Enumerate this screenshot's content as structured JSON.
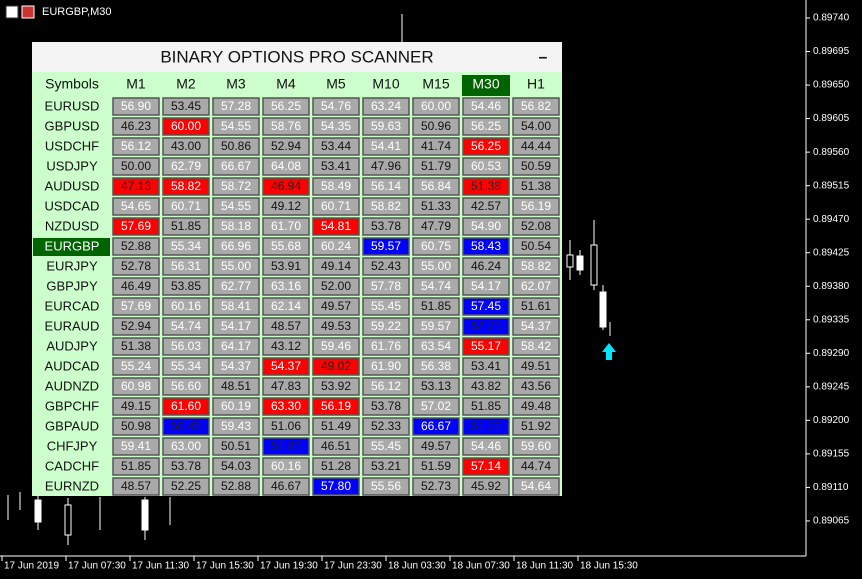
{
  "window": {
    "title": "EURGBP,M30"
  },
  "price_axis": [
    "0.89740",
    "0.89695",
    "0.89650",
    "0.89605",
    "0.89560",
    "0.89515",
    "0.89470",
    "0.89425",
    "0.89380",
    "0.89335",
    "0.89290",
    "0.89245",
    "0.89200",
    "0.89155",
    "0.89110",
    "0.89065"
  ],
  "time_axis": [
    "17 Jun 2019",
    "17 Jun 07:30",
    "17 Jun 11:30",
    "17 Jun 15:30",
    "17 Jun 19:30",
    "17 Jun 23:30",
    "18 Jun 03:30",
    "18 Jun 07:30",
    "18 Jun 11:30",
    "18 Jun 15:30"
  ],
  "scanner": {
    "title": "BINARY OPTIONS PRO SCANNER",
    "minimize": "–",
    "symbols_header": "Symbols",
    "timeframes": [
      "M1",
      "M2",
      "M3",
      "M4",
      "M5",
      "M10",
      "M15",
      "M30",
      "H1"
    ],
    "active_symbol": "EURGBP",
    "active_timeframe": "M30",
    "cell_colors": {
      "D": [
        "#a9a9a9",
        "#111111"
      ],
      "L": [
        "#a9a9a9",
        "#ffffff"
      ],
      "R": [
        "#ff0000",
        "#ffffff"
      ],
      "r": [
        "#ff0000",
        "#222222"
      ],
      "B": [
        "#0000ff",
        "#ffffff"
      ],
      "b": [
        "#0000ff",
        "#222222"
      ]
    },
    "rows": [
      {
        "symbol": "EURUSD",
        "values": [
          "56.90",
          "53.45",
          "57.28",
          "56.25",
          "54.76",
          "63.24",
          "60.00",
          "54.46",
          "56.82"
        ],
        "colors": [
          "L",
          "D",
          "L",
          "L",
          "L",
          "L",
          "L",
          "L",
          "L"
        ]
      },
      {
        "symbol": "GBPUSD",
        "values": [
          "46.23",
          "60.00",
          "54.55",
          "58.76",
          "54.35",
          "59.63",
          "50.96",
          "56.25",
          "54.00"
        ],
        "colors": [
          "D",
          "R",
          "L",
          "L",
          "L",
          "L",
          "D",
          "L",
          "D"
        ]
      },
      {
        "symbol": "USDCHF",
        "values": [
          "56.12",
          "43.00",
          "50.86",
          "52.94",
          "53.44",
          "54.41",
          "41.74",
          "56.25",
          "44.44"
        ],
        "colors": [
          "L",
          "D",
          "D",
          "D",
          "D",
          "L",
          "D",
          "R",
          "D"
        ]
      },
      {
        "symbol": "USDJPY",
        "values": [
          "50.00",
          "62.79",
          "66.67",
          "64.08",
          "53.41",
          "47.96",
          "51.79",
          "60.53",
          "50.59"
        ],
        "colors": [
          "D",
          "L",
          "L",
          "L",
          "D",
          "D",
          "D",
          "L",
          "D"
        ]
      },
      {
        "symbol": "AUDUSD",
        "values": [
          "47.13",
          "58.82",
          "58.72",
          "46.94",
          "58.49",
          "56.14",
          "56.84",
          "51.38",
          "51.38"
        ],
        "colors": [
          "r",
          "R",
          "L",
          "r",
          "L",
          "L",
          "L",
          "r",
          "D"
        ]
      },
      {
        "symbol": "USDCAD",
        "values": [
          "54.65",
          "60.71",
          "54.55",
          "49.12",
          "60.71",
          "58.82",
          "51.33",
          "42.57",
          "56.19"
        ],
        "colors": [
          "L",
          "L",
          "L",
          "D",
          "L",
          "L",
          "D",
          "D",
          "L"
        ]
      },
      {
        "symbol": "NZDUSD",
        "values": [
          "57.69",
          "51.85",
          "58.18",
          "61.70",
          "54.81",
          "53.78",
          "47.79",
          "54.90",
          "52.08"
        ],
        "colors": [
          "R",
          "D",
          "L",
          "L",
          "R",
          "D",
          "D",
          "L",
          "D"
        ]
      },
      {
        "symbol": "EURGBP",
        "values": [
          "52.88",
          "55.34",
          "66.96",
          "55.68",
          "60.24",
          "59.57",
          "60.75",
          "58.43",
          "50.54"
        ],
        "colors": [
          "D",
          "L",
          "L",
          "L",
          "L",
          "B",
          "L",
          "B",
          "D"
        ]
      },
      {
        "symbol": "EURJPY",
        "values": [
          "52.78",
          "56.31",
          "55.00",
          "53.91",
          "49.14",
          "52.43",
          "55.00",
          "46.24",
          "58.82"
        ],
        "colors": [
          "D",
          "L",
          "L",
          "D",
          "D",
          "D",
          "L",
          "D",
          "L"
        ]
      },
      {
        "symbol": "GBPJPY",
        "values": [
          "46.49",
          "53.85",
          "62.77",
          "63.16",
          "52.00",
          "57.78",
          "54.74",
          "54.17",
          "62.07"
        ],
        "colors": [
          "D",
          "D",
          "L",
          "L",
          "D",
          "L",
          "L",
          "L",
          "L"
        ]
      },
      {
        "symbol": "EURCAD",
        "values": [
          "57.69",
          "60.16",
          "58.41",
          "62.14",
          "49.57",
          "55.45",
          "51.85",
          "57.45",
          "51.61"
        ],
        "colors": [
          "L",
          "L",
          "L",
          "L",
          "D",
          "L",
          "D",
          "B",
          "D"
        ]
      },
      {
        "symbol": "EURAUD",
        "values": [
          "52.94",
          "54.74",
          "54.17",
          "48.57",
          "49.53",
          "59.22",
          "59.57",
          "52.75",
          "54.37"
        ],
        "colors": [
          "D",
          "L",
          "L",
          "D",
          "D",
          "L",
          "L",
          "b",
          "L"
        ]
      },
      {
        "symbol": "AUDJPY",
        "values": [
          "51.38",
          "56.03",
          "64.17",
          "43.12",
          "59.46",
          "61.76",
          "63.54",
          "55.17",
          "58.42"
        ],
        "colors": [
          "D",
          "L",
          "L",
          "D",
          "L",
          "L",
          "L",
          "R",
          "L"
        ]
      },
      {
        "symbol": "AUDCAD",
        "values": [
          "55.24",
          "55.34",
          "54.37",
          "54.37",
          "49.02",
          "61.90",
          "56.38",
          "53.41",
          "49.51"
        ],
        "colors": [
          "L",
          "L",
          "L",
          "R",
          "r",
          "L",
          "L",
          "D",
          "D"
        ]
      },
      {
        "symbol": "AUDNZD",
        "values": [
          "60.98",
          "56.60",
          "48.51",
          "47.83",
          "53.92",
          "56.12",
          "53.13",
          "43.82",
          "43.56"
        ],
        "colors": [
          "L",
          "L",
          "D",
          "D",
          "D",
          "L",
          "D",
          "D",
          "D"
        ]
      },
      {
        "symbol": "GBPCHF",
        "values": [
          "49.15",
          "61.60",
          "60.19",
          "63.30",
          "56.19",
          "53.78",
          "57.02",
          "51.85",
          "49.48"
        ],
        "colors": [
          "D",
          "R",
          "L",
          "R",
          "R",
          "D",
          "L",
          "D",
          "D"
        ]
      },
      {
        "symbol": "GBPAUD",
        "values": [
          "50.98",
          "50.46",
          "59.43",
          "51.06",
          "51.49",
          "52.33",
          "66.67",
          "51.72",
          "51.92"
        ],
        "colors": [
          "D",
          "b",
          "L",
          "D",
          "D",
          "D",
          "B",
          "b",
          "D"
        ]
      },
      {
        "symbol": "CHFJPY",
        "values": [
          "59.41",
          "63.00",
          "50.51",
          "51.83",
          "46.51",
          "55.45",
          "49.57",
          "54.46",
          "59.60"
        ],
        "colors": [
          "L",
          "L",
          "D",
          "b",
          "D",
          "L",
          "D",
          "L",
          "L"
        ]
      },
      {
        "symbol": "CADCHF",
        "values": [
          "51.85",
          "53.78",
          "54.03",
          "60.16",
          "51.28",
          "53.21",
          "51.59",
          "57.14",
          "44.74"
        ],
        "colors": [
          "D",
          "D",
          "D",
          "L",
          "D",
          "D",
          "D",
          "R",
          "D"
        ]
      },
      {
        "symbol": "EURNZD",
        "values": [
          "48.57",
          "52.25",
          "52.88",
          "46.67",
          "57.80",
          "55.56",
          "52.73",
          "45.92",
          "54.64"
        ],
        "colors": [
          "D",
          "D",
          "D",
          "D",
          "B",
          "L",
          "D",
          "D",
          "L"
        ]
      }
    ]
  }
}
